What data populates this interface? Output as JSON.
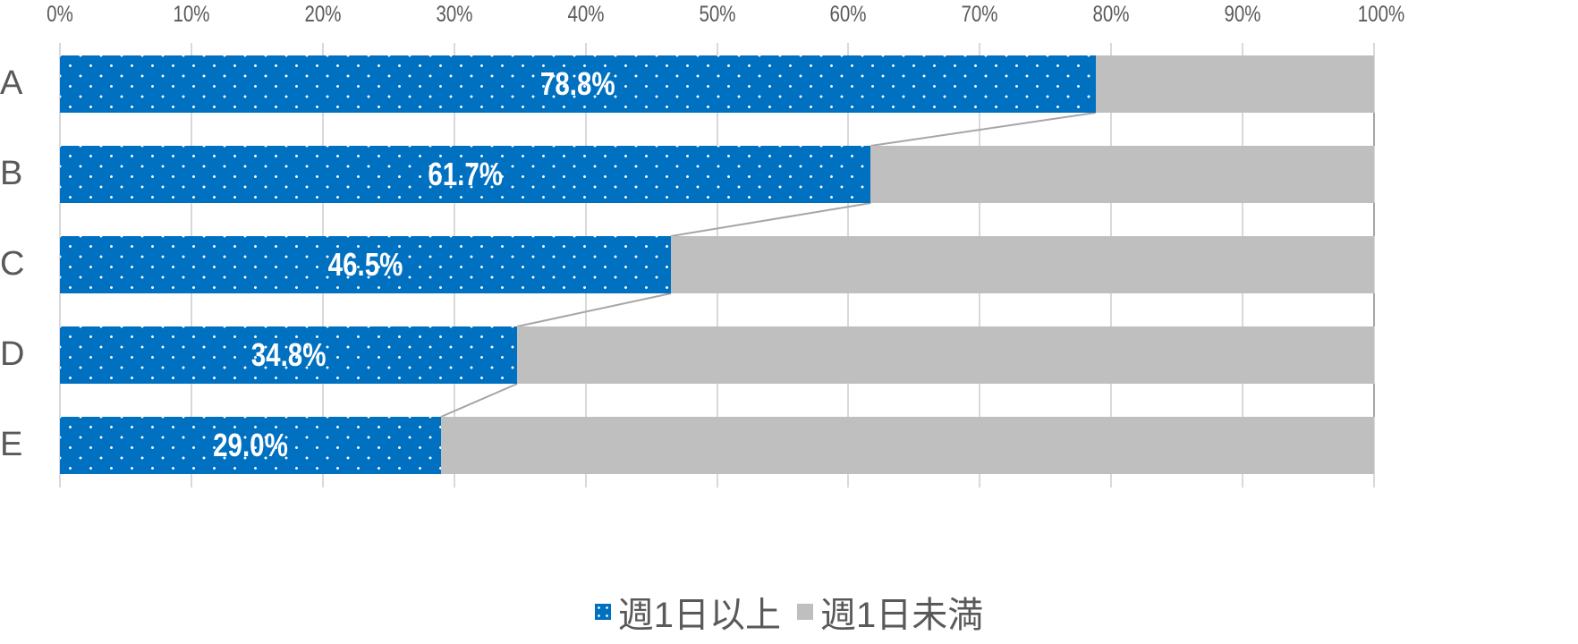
{
  "chart_data": {
    "type": "bar",
    "orientation": "horizontal",
    "stacked": "100%",
    "title": "",
    "xlabel": "",
    "ylabel": "",
    "xlim": [
      0,
      100
    ],
    "x_ticks": [
      "0%",
      "10%",
      "20%",
      "30%",
      "40%",
      "50%",
      "60%",
      "70%",
      "80%",
      "90%",
      "100%"
    ],
    "categories": [
      "A",
      "B",
      "C",
      "D",
      "E"
    ],
    "series": [
      {
        "name": "週1日以上",
        "color": "#0070c0",
        "pattern": "white-dots",
        "values": [
          78.8,
          61.7,
          46.5,
          34.8,
          29.0
        ]
      },
      {
        "name": "週1日未満",
        "color": "#bfbfbf",
        "values": [
          21.2,
          38.3,
          53.5,
          65.2,
          71.0
        ]
      }
    ],
    "data_labels": [
      "78.8%",
      "61.7%",
      "46.5%",
      "34.8%",
      "29.0%"
    ],
    "series_lines": true,
    "grid": "vertical",
    "legend_position": "bottom"
  },
  "legend": {
    "items": [
      {
        "label": "週1日以上",
        "color": "#0070c0"
      },
      {
        "label": "週1日未満",
        "color": "#bfbfbf"
      }
    ]
  }
}
